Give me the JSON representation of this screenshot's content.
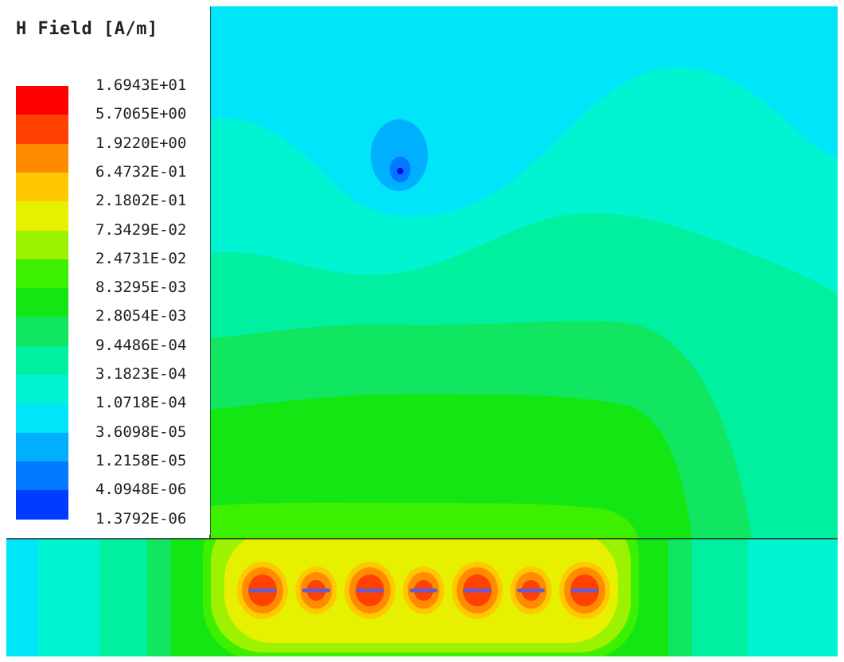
{
  "legend": {
    "title": "H Field [A/m]",
    "levels": [
      {
        "value": "1.6943E+01",
        "color": "#ff0000"
      },
      {
        "value": "5.7065E+00",
        "color": "#ff4000"
      },
      {
        "value": "1.9220E+00",
        "color": "#ff8c00"
      },
      {
        "value": "6.4732E-01",
        "color": "#ffc800"
      },
      {
        "value": "2.1802E-01",
        "color": "#e6f000"
      },
      {
        "value": "7.3429E-02",
        "color": "#9cf200"
      },
      {
        "value": "2.4731E-02",
        "color": "#3cf000"
      },
      {
        "value": "8.3295E-03",
        "color": "#14e614"
      },
      {
        "value": "2.8054E-03",
        "color": "#10e660"
      },
      {
        "value": "9.4486E-04",
        "color": "#00f0a0"
      },
      {
        "value": "3.1823E-04",
        "color": "#00f4d2"
      },
      {
        "value": "1.0718E-04",
        "color": "#00e6f8"
      },
      {
        "value": "3.6098E-05",
        "color": "#00b0ff"
      },
      {
        "value": "1.2158E-05",
        "color": "#0078ff"
      },
      {
        "value": "4.0948E-06",
        "color": "#003cff"
      },
      {
        "value": "1.3792E-06",
        "color": "#0000f0"
      }
    ]
  },
  "conductor_count": 7
}
